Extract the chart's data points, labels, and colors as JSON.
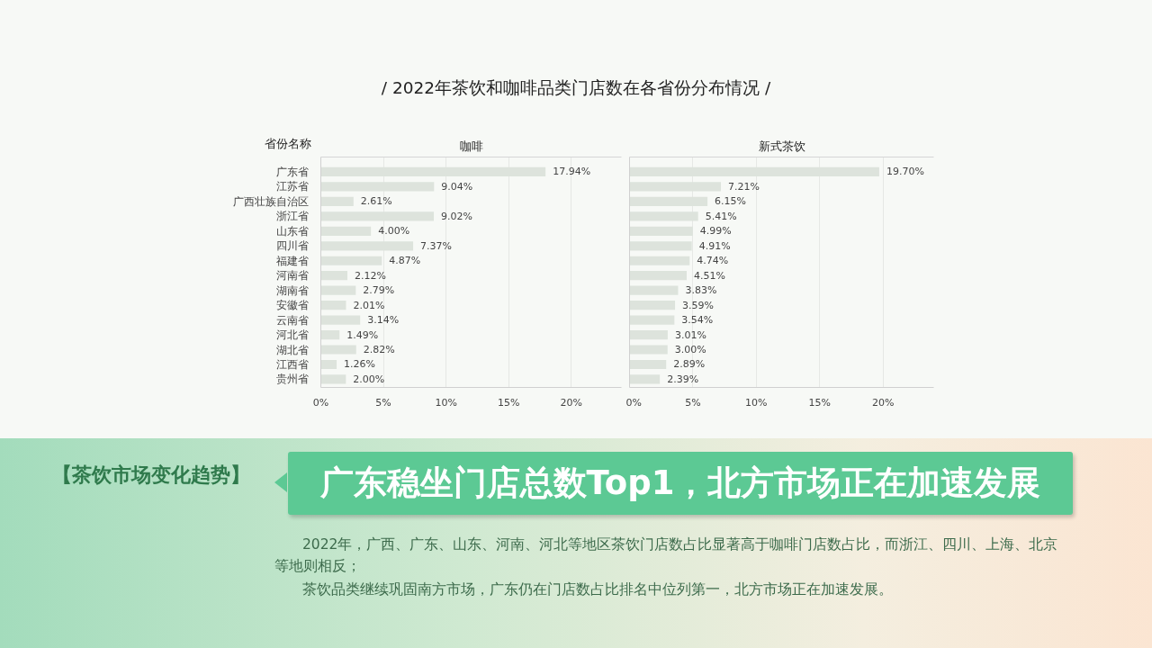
{
  "chart_data": [
    {
      "type": "other",
      "title": "/ 2022年茶饮和咖啡品类门店数在各省份分布情况 /"
    },
    {
      "type": "bar",
      "orientation": "horizontal",
      "title": "咖啡",
      "ylabel": "省份名称",
      "categories": [
        "广东省",
        "江苏省",
        "广西壮族自治区",
        "浙江省",
        "山东省",
        "四川省",
        "福建省",
        "河南省",
        "湖南省",
        "安徽省",
        "云南省",
        "河北省",
        "湖北省",
        "江西省",
        "贵州省"
      ],
      "values": [
        17.94,
        9.04,
        2.61,
        9.02,
        4.0,
        7.37,
        4.87,
        2.12,
        2.79,
        2.01,
        3.14,
        1.49,
        2.82,
        1.26,
        2.0
      ],
      "value_labels": [
        "17.94%",
        "9.04%",
        "2.61%",
        "9.02%",
        "4.00%",
        "7.37%",
        "4.87%",
        "2.12%",
        "2.79%",
        "2.01%",
        "3.14%",
        "1.49%",
        "2.82%",
        "1.26%",
        "2.00%"
      ],
      "color": "#dde3dc",
      "xlim": [
        0,
        24
      ],
      "xticks": [
        {
          "value": 0,
          "label": "0%"
        },
        {
          "value": 5,
          "label": "5%"
        },
        {
          "value": 10,
          "label": "10%"
        },
        {
          "value": 15,
          "label": "15%"
        },
        {
          "value": 20,
          "label": "20%"
        }
      ],
      "grid": "x"
    },
    {
      "type": "bar",
      "orientation": "horizontal",
      "title": "新式茶饮",
      "categories": [
        null,
        null,
        null,
        null,
        null,
        null,
        null,
        null,
        null,
        null,
        null,
        null,
        null,
        null,
        null
      ],
      "values": [
        19.7,
        7.21,
        6.15,
        5.41,
        4.99,
        4.91,
        4.74,
        4.51,
        3.83,
        3.59,
        3.54,
        3.01,
        3.0,
        2.89,
        2.39
      ],
      "value_labels": [
        "19.70%",
        "7.21%",
        "6.15%",
        "5.41%",
        "4.99%",
        "4.91%",
        "4.74%",
        "4.51%",
        "3.83%",
        "3.59%",
        "3.54%",
        "3.01%",
        "3.00%",
        "2.89%",
        "2.39%"
      ],
      "color": "#dde3dc",
      "xlim": [
        0,
        24
      ],
      "xticks": [
        {
          "value": 0,
          "label": "0%"
        },
        {
          "value": 5,
          "label": "5%"
        },
        {
          "value": 10,
          "label": "10%"
        },
        {
          "value": 15,
          "label": "15%"
        },
        {
          "value": 20,
          "label": "20%"
        }
      ],
      "grid": "x"
    },
    {
      "type": "other",
      "title": "【茶饮市场变化趋势】",
      "subtitle": "广东稳坐门店总数Top1，北方市场正在加速发展",
      "annotations": [
        "2022年，广西、广东、山东、河南、河北等地区茶饮门店数占比显著高于咖啡门店数占比，而浙江、四川、上海、北京等地则相反；",
        "茶饮品类继续巩固南方市场，广东仍在门店数占比排名中位列第一，北方市场正在加速发展。"
      ]
    }
  ]
}
